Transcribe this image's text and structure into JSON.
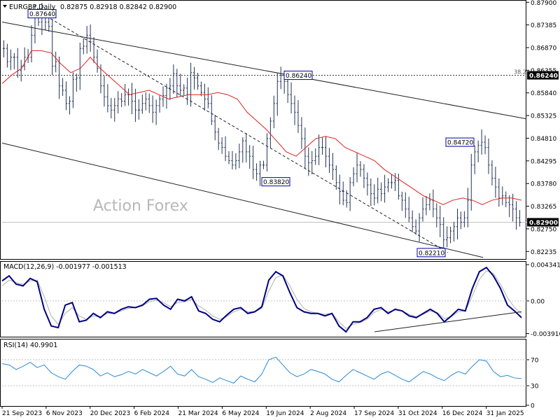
{
  "chart_data": [
    {
      "type": "ohlc",
      "panel": "price",
      "symbol": "EURGBP,Daily",
      "ohlc_header": "0.82875 0.82918 0.82842 0.82900",
      "last_price": 0.829,
      "last_price_label": "0.82900",
      "watermark": "Action Forex",
      "ylim": [
        0.8208,
        0.8792
      ],
      "y_ticks": [
        {
          "v": 0.879,
          "label": "0.87900"
        },
        {
          "v": 0.87385,
          "label": "0.87385"
        },
        {
          "v": 0.8687,
          "label": "0.86870"
        },
        {
          "v": 0.86355,
          "label": "0.86355"
        },
        {
          "v": 0.8584,
          "label": "0.85840"
        },
        {
          "v": 0.85325,
          "label": "0.85325"
        },
        {
          "v": 0.8481,
          "label": "0.84810"
        },
        {
          "v": 0.84295,
          "label": "0.84295"
        },
        {
          "v": 0.8378,
          "label": "0.83780"
        },
        {
          "v": 0.83265,
          "label": "0.83265"
        },
        {
          "v": 0.8275,
          "label": "0.82750"
        },
        {
          "v": 0.82235,
          "label": "0.82235"
        }
      ],
      "fib_level": {
        "label": "38.2",
        "value": 0.8624,
        "price_label": "0.86240"
      },
      "close_path": [
        [
          0.8685,
          0.8655
        ],
        [
          0.8665,
          0.8665
        ],
        [
          0.8635,
          0.8645
        ],
        [
          0.8665,
          0.8665
        ],
        [
          0.8715,
          0.8764
        ],
        [
          0.8745,
          0.876
        ],
        [
          0.8745,
          0.8735
        ],
        [
          0.8645,
          0.8655
        ],
        [
          0.86,
          0.859
        ],
        [
          0.856,
          0.8565
        ],
        [
          0.8615,
          0.8618
        ],
        [
          0.8685,
          0.869
        ],
        [
          0.8715,
          0.87
        ],
        [
          0.8665,
          0.864
        ],
        [
          0.86,
          0.8575
        ],
        [
          0.8555,
          0.8545
        ],
        [
          0.8555,
          0.857
        ],
        [
          0.8565,
          0.858
        ],
        [
          0.858,
          0.8565
        ],
        [
          0.8545,
          0.8545
        ],
        [
          0.856,
          0.857
        ],
        [
          0.8555,
          0.854
        ],
        [
          0.8555,
          0.857
        ],
        [
          0.8578,
          0.8595
        ],
        [
          0.86,
          0.8628
        ],
        [
          0.86,
          0.859
        ],
        [
          0.8595,
          0.858
        ],
        [
          0.863,
          0.8618
        ],
        [
          0.86,
          0.8585
        ],
        [
          0.857,
          0.856
        ],
        [
          0.852,
          0.8495
        ],
        [
          0.847,
          0.846
        ],
        [
          0.844,
          0.843
        ],
        [
          0.842,
          0.843
        ],
        [
          0.845,
          0.8475
        ],
        [
          0.845,
          0.844
        ],
        [
          0.841,
          0.84
        ],
        [
          0.842,
          0.842
        ],
        [
          0.848,
          0.852
        ],
        [
          0.856,
          0.861
        ],
        [
          0.8624,
          0.861
        ],
        [
          0.858,
          0.856
        ],
        [
          0.854,
          0.851
        ],
        [
          0.848,
          0.844
        ],
        [
          0.8425,
          0.843
        ],
        [
          0.844,
          0.846
        ],
        [
          0.846,
          0.844
        ],
        [
          0.842,
          0.841
        ],
        [
          0.838,
          0.836
        ],
        [
          0.834,
          0.8335
        ],
        [
          0.838,
          0.84
        ],
        [
          0.842,
          0.841
        ],
        [
          0.839,
          0.8375
        ],
        [
          0.8355,
          0.8345
        ],
        [
          0.8365,
          0.8355
        ],
        [
          0.837,
          0.838
        ],
        [
          0.838,
          0.8385
        ],
        [
          0.835,
          0.834
        ],
        [
          0.832,
          0.83
        ],
        [
          0.828,
          0.827
        ],
        [
          0.83,
          0.832
        ],
        [
          0.833,
          0.834
        ],
        [
          0.832,
          0.83
        ],
        [
          0.8285,
          0.825
        ],
        [
          0.8255,
          0.827
        ],
        [
          0.828,
          0.83
        ],
        [
          0.829,
          0.83
        ],
        [
          0.834,
          0.842
        ],
        [
          0.845,
          0.8465
        ],
        [
          0.8472,
          0.846
        ],
        [
          0.842,
          0.839
        ],
        [
          0.837,
          0.8345
        ],
        [
          0.835,
          0.8335
        ],
        [
          0.833,
          0.832
        ],
        [
          0.83,
          0.829
        ]
      ],
      "ma_path": [
        [
          0.8605,
          0.8625
        ],
        [
          0.864,
          0.868
        ],
        [
          0.868,
          0.8675
        ],
        [
          0.865,
          0.863
        ],
        [
          0.864,
          0.8665
        ],
        [
          0.864,
          0.862
        ],
        [
          0.86,
          0.858
        ],
        [
          0.8585,
          0.859
        ],
        [
          0.858,
          0.857
        ],
        [
          0.8575,
          0.858
        ],
        [
          0.858,
          0.858
        ],
        [
          0.8585,
          0.858
        ],
        [
          0.857,
          0.854
        ],
        [
          0.852,
          0.85
        ],
        [
          0.8475,
          0.845
        ],
        [
          0.844,
          0.846
        ],
        [
          0.848,
          0.8485
        ],
        [
          0.848,
          0.846
        ],
        [
          0.845,
          0.844
        ],
        [
          0.843,
          0.841
        ],
        [
          0.8395,
          0.838
        ],
        [
          0.8365,
          0.835
        ],
        [
          0.834,
          0.833
        ],
        [
          0.834,
          0.8345
        ],
        [
          0.834,
          0.833
        ],
        [
          0.834,
          0.8345
        ],
        [
          0.8345,
          0.834
        ]
      ],
      "annotations": [
        {
          "label": "0.87640",
          "value": 0.8764
        },
        {
          "label": "0.86240",
          "value": 0.8624
        },
        {
          "label": "0.83820",
          "value": 0.8382
        },
        {
          "label": "0.84720",
          "value": 0.8472
        },
        {
          "label": "0.82210",
          "value": 0.8221
        }
      ],
      "colors": {
        "bars": "#223355",
        "ma": "#dd2222",
        "channel": "#222222",
        "fib": "#333333",
        "label_box": "#0000aa"
      }
    },
    {
      "type": "line",
      "panel": "macd",
      "header": "MACD(12,26,9) -0.001977 -0.001513",
      "macd": -0.001977,
      "signal": -0.001513,
      "ylim": [
        -0.0042,
        0.0046
      ],
      "y_ticks": [
        {
          "v": 0.004341,
          "label": "0.004341"
        },
        {
          "v": 0.0,
          "label": "0.00"
        },
        {
          "v": -0.003916,
          "label": "-0.003916"
        }
      ],
      "macd_path": [
        0.0024,
        0.003,
        0.002,
        0.0018,
        0.0027,
        0.0023,
        -0.001,
        -0.003,
        -0.0032,
        -0.0005,
        -0.0002,
        -0.0025,
        -0.0023,
        -0.0015,
        -0.002,
        -0.0013,
        -0.0015,
        -0.001,
        -0.0007,
        -0.0008,
        -0.0005,
        0.0002,
        0.0003,
        -0.0005,
        -0.001,
        0.0002,
        0.0,
        0.0005,
        -0.0012,
        -0.0015,
        -0.0022,
        -0.0025,
        -0.0017,
        -0.001,
        -0.0008,
        -0.0015,
        -0.0013,
        -0.0007,
        0.0025,
        0.0035,
        0.003,
        0.001,
        -0.0008,
        -0.0013,
        -0.0015,
        -0.0015,
        -0.0018,
        -0.0015,
        -0.003,
        -0.0037,
        -0.0025,
        -0.0025,
        -0.002,
        -0.001,
        -0.0008,
        -0.0015,
        -0.001,
        -0.0012,
        -0.0018,
        -0.002,
        -0.0015,
        -0.001,
        -0.0015,
        -0.0025,
        -0.0018,
        -0.001,
        -0.0012,
        0.0015,
        0.0035,
        0.004,
        0.003,
        0.0015,
        -0.0005,
        -0.0012,
        -0.002
      ],
      "signal_path": [
        0.0018,
        0.0025,
        0.0022,
        0.002,
        0.0024,
        0.0025,
        0.0005,
        -0.0018,
        -0.0028,
        -0.0015,
        -0.0008,
        -0.0018,
        -0.0022,
        -0.0018,
        -0.0019,
        -0.0015,
        -0.0015,
        -0.0012,
        -0.0009,
        -0.0008,
        -0.0006,
        -0.0001,
        0.0001,
        -0.0002,
        -0.0007,
        -0.0002,
        -0.0001,
        0.0002,
        -0.0006,
        -0.0011,
        -0.0018,
        -0.0022,
        -0.0019,
        -0.0013,
        -0.001,
        -0.0013,
        -0.0013,
        -0.0009,
        0.0012,
        0.0028,
        0.0031,
        0.0018,
        0.0002,
        -0.0009,
        -0.0013,
        -0.0015,
        -0.0016,
        -0.0015,
        -0.0025,
        -0.0033,
        -0.0028,
        -0.0026,
        -0.0022,
        -0.0014,
        -0.001,
        -0.0013,
        -0.0011,
        -0.0012,
        -0.0016,
        -0.0019,
        -0.0016,
        -0.0012,
        -0.0014,
        -0.0021,
        -0.0019,
        -0.0013,
        -0.0012,
        0.0006,
        0.0026,
        0.0036,
        0.0033,
        0.002,
        0.0004,
        -0.0008,
        -0.0015
      ],
      "colors": {
        "macd": "#000080",
        "signal": "#b0b0b0",
        "trend": "#222222"
      }
    },
    {
      "type": "line",
      "panel": "rsi",
      "header": "RSI(14) 40.9901",
      "rsi": 40.9901,
      "ylim": [
        0,
        100
      ],
      "y_ticks": [
        {
          "v": 70,
          "label": "70"
        },
        {
          "v": 30,
          "label": "30"
        },
        {
          "v": 0,
          "label": "0"
        }
      ],
      "rsi_path": [
        64,
        62,
        55,
        60,
        66,
        58,
        62,
        50,
        44,
        40,
        52,
        62,
        60,
        55,
        45,
        50,
        44,
        47,
        52,
        48,
        55,
        50,
        45,
        52,
        60,
        48,
        45,
        55,
        44,
        40,
        35,
        42,
        38,
        34,
        45,
        40,
        36,
        48,
        70,
        74,
        62,
        50,
        44,
        48,
        55,
        52,
        48,
        40,
        36,
        46,
        55,
        50,
        45,
        40,
        48,
        52,
        46,
        40,
        36,
        44,
        52,
        48,
        42,
        38,
        46,
        52,
        48,
        60,
        70,
        68,
        52,
        44,
        46,
        42,
        41
      ],
      "colors": {
        "rsi": "#2a8ad4"
      }
    }
  ],
  "x_axis_labels": [
    "21 Sep 2023",
    "6 Nov 2023",
    "20 Dec 2023",
    "6 Feb 2024",
    "21 Mar 2024",
    "6 May 2024",
    "19 Jun 2024",
    "2 Aug 2024",
    "17 Sep 2024",
    "31 Oct 2024",
    "16 Dec 2024",
    "31 Jan 2025"
  ]
}
